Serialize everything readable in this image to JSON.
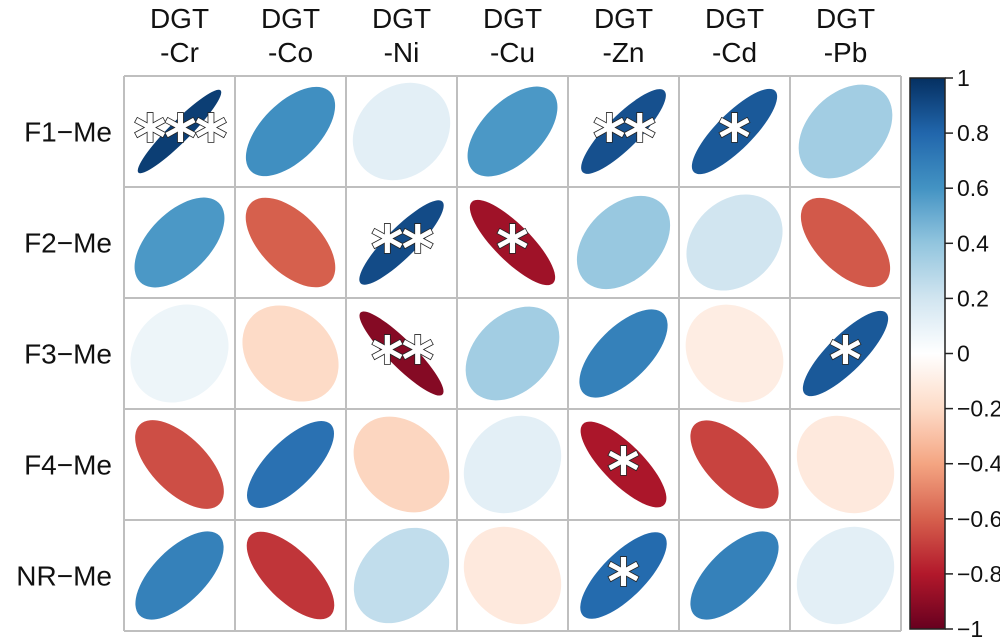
{
  "chart_data": {
    "type": "correlation-ellipse-matrix",
    "columns": [
      [
        "DGT",
        "-Cr"
      ],
      [
        "DGT",
        "-Co"
      ],
      [
        "DGT",
        "-Ni"
      ],
      [
        "DGT",
        "-Cu"
      ],
      [
        "DGT",
        "-Zn"
      ],
      [
        "DGT",
        "-Cd"
      ],
      [
        "DGT",
        "-Pb"
      ]
    ],
    "rows": [
      "F1−Me",
      "F2−Me",
      "F3−Me",
      "F4−Me",
      "NR−Me"
    ],
    "values": [
      [
        0.95,
        0.62,
        0.12,
        0.58,
        0.88,
        0.85,
        0.35
      ],
      [
        0.58,
        -0.6,
        0.9,
        -0.85,
        0.38,
        0.2,
        -0.62
      ],
      [
        0.08,
        -0.2,
        -0.92,
        0.35,
        0.68,
        -0.1,
        0.85
      ],
      [
        -0.65,
        0.75,
        -0.22,
        0.12,
        -0.82,
        -0.68,
        -0.12
      ],
      [
        0.68,
        -0.72,
        0.25,
        -0.12,
        0.78,
        0.68,
        0.12
      ]
    ],
    "significance": [
      [
        "***",
        "",
        "",
        "",
        "**",
        "*",
        ""
      ],
      [
        "",
        "",
        "**",
        "*",
        "",
        "",
        ""
      ],
      [
        "",
        "",
        "**",
        "",
        "",
        "",
        "*"
      ],
      [
        "",
        "",
        "",
        "",
        "*",
        "",
        ""
      ],
      [
        "",
        "",
        "",
        "",
        "*",
        "",
        ""
      ]
    ],
    "colorbar": {
      "range": [
        -1,
        1
      ],
      "ticks": [
        "1",
        "0.8",
        "0.6",
        "0.4",
        "0.2",
        "0",
        "−0.2",
        "−0.4",
        "−0.6",
        "−0.8",
        "−1"
      ]
    },
    "colors": {
      "negative_end": "#67001f",
      "neutral": "#ffffff",
      "positive_end": "#053061",
      "grid": "#bfbfbf"
    }
  }
}
